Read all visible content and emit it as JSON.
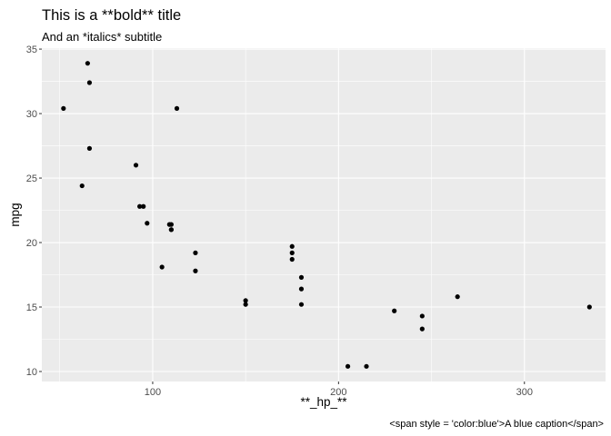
{
  "chart_data": {
    "type": "scatter",
    "title": "This is a **bold** title",
    "subtitle": "And an *italics* subtitle",
    "xlabel": "**_hp_**",
    "ylabel": "mpg",
    "caption": "<span style = 'color:blue'>A blue caption</span>",
    "xlim": [
      40.35,
      343.65
    ],
    "ylim": [
      9.225,
      35.075
    ],
    "x_ticks": [
      100,
      200,
      300
    ],
    "y_ticks": [
      10,
      15,
      20,
      25,
      30,
      35
    ],
    "grid": true,
    "panel_background": "#ebebeb",
    "grid_color": "#ffffff",
    "point_color": "#000000",
    "points": [
      {
        "x": 110,
        "y": 21.0
      },
      {
        "x": 110,
        "y": 21.0
      },
      {
        "x": 93,
        "y": 22.8
      },
      {
        "x": 110,
        "y": 21.4
      },
      {
        "x": 175,
        "y": 18.7
      },
      {
        "x": 105,
        "y": 18.1
      },
      {
        "x": 245,
        "y": 14.3
      },
      {
        "x": 62,
        "y": 24.4
      },
      {
        "x": 95,
        "y": 22.8
      },
      {
        "x": 123,
        "y": 19.2
      },
      {
        "x": 123,
        "y": 17.8
      },
      {
        "x": 180,
        "y": 16.4
      },
      {
        "x": 180,
        "y": 17.3
      },
      {
        "x": 180,
        "y": 15.2
      },
      {
        "x": 205,
        "y": 10.4
      },
      {
        "x": 215,
        "y": 10.4
      },
      {
        "x": 230,
        "y": 14.7
      },
      {
        "x": 66,
        "y": 32.4
      },
      {
        "x": 52,
        "y": 30.4
      },
      {
        "x": 65,
        "y": 33.9
      },
      {
        "x": 97,
        "y": 21.5
      },
      {
        "x": 150,
        "y": 15.5
      },
      {
        "x": 150,
        "y": 15.2
      },
      {
        "x": 245,
        "y": 13.3
      },
      {
        "x": 175,
        "y": 19.2
      },
      {
        "x": 66,
        "y": 27.3
      },
      {
        "x": 91,
        "y": 26.0
      },
      {
        "x": 113,
        "y": 30.4
      },
      {
        "x": 264,
        "y": 15.8
      },
      {
        "x": 175,
        "y": 19.7
      },
      {
        "x": 335,
        "y": 15.0
      },
      {
        "x": 109,
        "y": 21.4
      }
    ]
  }
}
